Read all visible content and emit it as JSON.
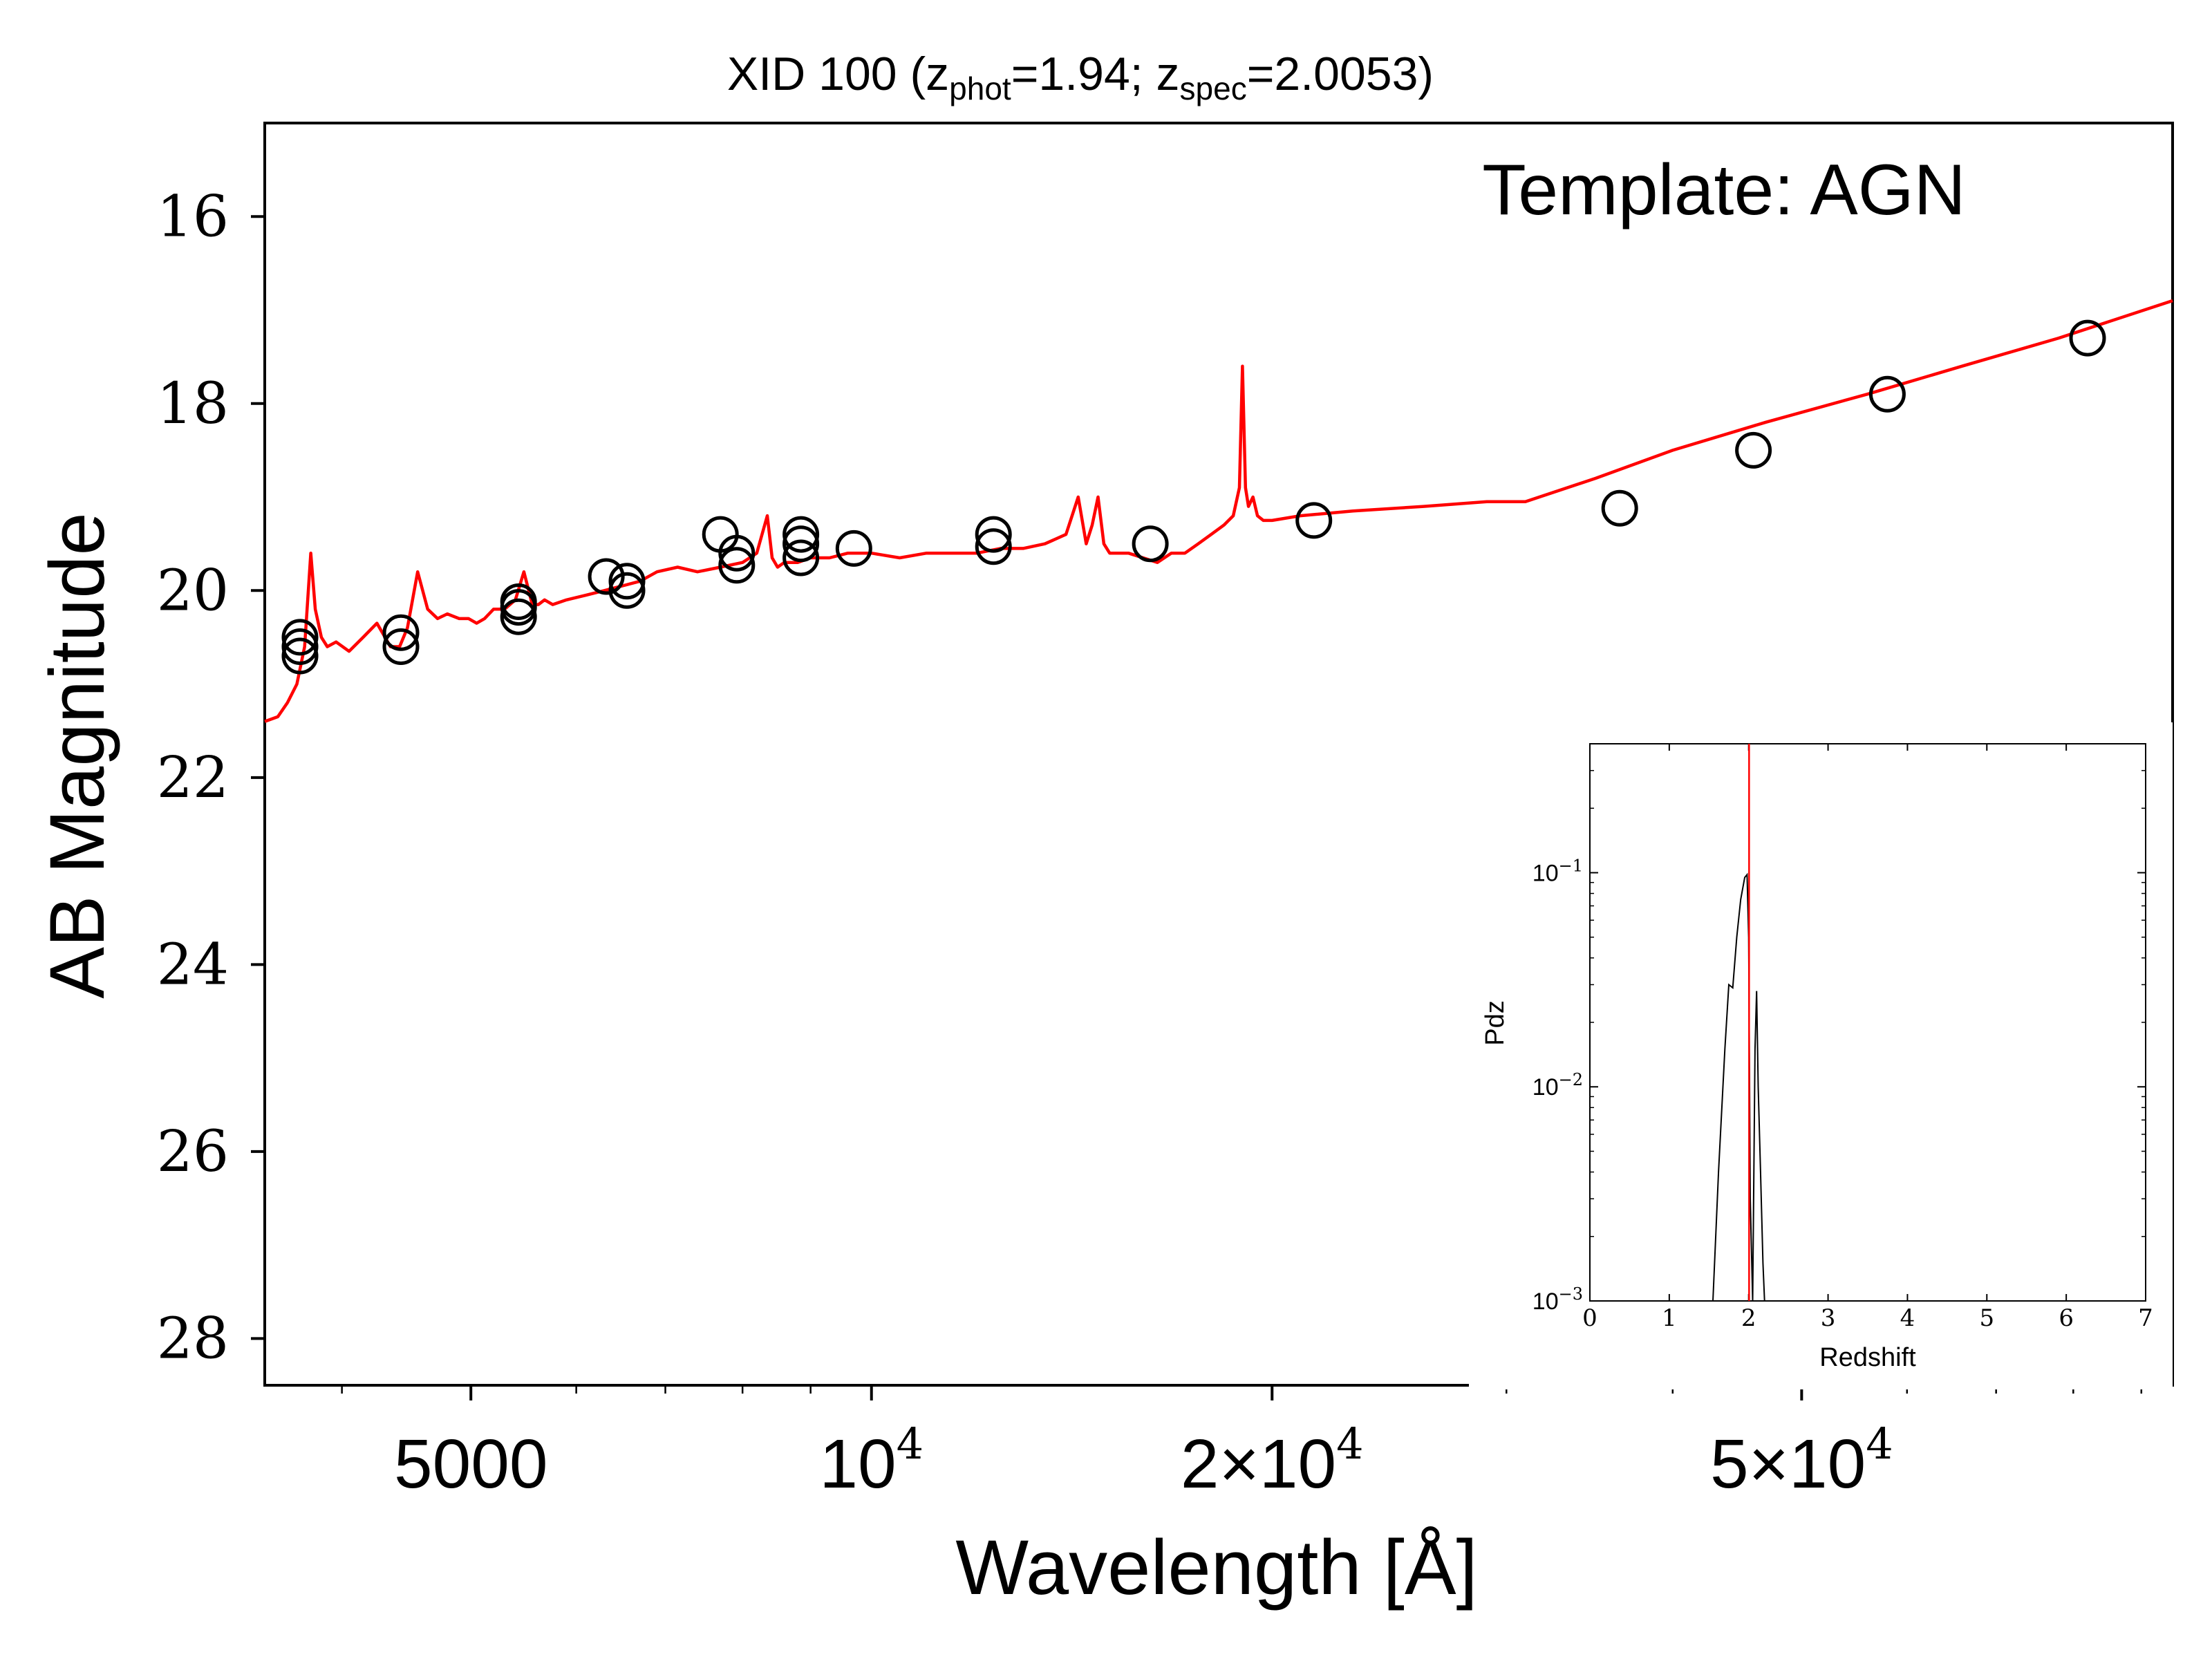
{
  "chart_data": [
    {
      "type": "scatter",
      "title": "XID 100 (z_phot=1.94; z_spec=2.0053)",
      "title_parts": {
        "prefix": "XID 100 (z",
        "sub1": "phot",
        "mid": "=1.94; z",
        "sub2": "spec",
        "suffix": "=2.0053)"
      },
      "annotation": "Template: AGN",
      "xlabel": "Wavelength [Å]",
      "ylabel": "AB Magnitude",
      "xscale": "log",
      "yaxis_inverted": true,
      "xlim": [
        3500,
        95000
      ],
      "ylim": [
        28.5,
        15.0
      ],
      "yticks": [
        16,
        18,
        20,
        22,
        24,
        26,
        28
      ],
      "xticks": [
        {
          "value": 5000,
          "label": "5000"
        },
        {
          "value": 10000,
          "label": "10",
          "sup": "4"
        },
        {
          "value": 20000,
          "label": "2×10",
          "sup": "4"
        },
        {
          "value": 50000,
          "label": "5×10",
          "sup": "4"
        }
      ],
      "colors": {
        "model": "#ff0000",
        "points": "#000000"
      },
      "series": [
        {
          "type": "line",
          "x": [
            3500,
            3580,
            3640,
            3700,
            3750,
            3790,
            3820,
            3860,
            3900,
            3960,
            4050,
            4150,
            4250,
            4350,
            4420,
            4480,
            4560,
            4640,
            4720,
            4800,
            4900,
            4980,
            5050,
            5120,
            5200,
            5300,
            5400,
            5480,
            5560,
            5620,
            5680,
            5760,
            5900,
            6100,
            6300,
            6500,
            6700,
            6900,
            7150,
            7400,
            7700,
            8000,
            8200,
            8350,
            8420,
            8500,
            8600,
            8800,
            9000,
            9300,
            9600,
            10000,
            10500,
            11000,
            11500,
            12000,
            12500,
            13000,
            13500,
            14000,
            14300,
            14500,
            14650,
            14800,
            14950,
            15100,
            15300,
            15600,
            16000,
            16400,
            16800,
            17200,
            17600,
            18000,
            18400,
            18700,
            18900,
            19000,
            19100,
            19200,
            19350,
            19500,
            19700,
            20000,
            21000,
            23000,
            26000,
            29000,
            31000,
            35000,
            40000,
            47000,
            56000,
            66000,
            78000,
            95000
          ],
          "y": [
            21.4,
            21.35,
            21.2,
            21.0,
            20.6,
            19.6,
            20.2,
            20.5,
            20.6,
            20.55,
            20.65,
            20.5,
            20.35,
            20.6,
            20.6,
            20.4,
            19.8,
            20.2,
            20.3,
            20.25,
            20.3,
            20.3,
            20.35,
            20.3,
            20.2,
            20.2,
            20.1,
            19.8,
            20.15,
            20.15,
            20.1,
            20.15,
            20.1,
            20.05,
            20.0,
            19.95,
            19.9,
            19.8,
            19.75,
            19.8,
            19.75,
            19.7,
            19.6,
            19.2,
            19.65,
            19.75,
            19.7,
            19.7,
            19.65,
            19.65,
            19.6,
            19.6,
            19.65,
            19.6,
            19.6,
            19.6,
            19.55,
            19.55,
            19.5,
            19.4,
            19.0,
            19.5,
            19.3,
            19.0,
            19.5,
            19.6,
            19.6,
            19.6,
            19.65,
            19.7,
            19.6,
            19.6,
            19.5,
            19.4,
            19.3,
            19.2,
            18.9,
            17.6,
            18.9,
            19.1,
            19.0,
            19.2,
            19.25,
            19.25,
            19.2,
            19.15,
            19.1,
            19.05,
            19.05,
            18.8,
            18.5,
            18.2,
            17.9,
            17.6,
            17.3,
            16.9
          ]
        },
        {
          "type": "scatter",
          "x": [
            3720,
            3720,
            3720,
            4430,
            4430,
            5430,
            5430,
            5430,
            6320,
            6550,
            6550,
            7700,
            7920,
            7920,
            8850,
            8850,
            8850,
            9700,
            12350,
            12350,
            16200,
            21500,
            36500,
            46000,
            58000,
            82000
          ],
          "y": [
            20.7,
            20.6,
            20.5,
            20.6,
            20.45,
            20.28,
            20.18,
            20.12,
            19.85,
            19.9,
            20.0,
            19.4,
            19.6,
            19.73,
            19.4,
            19.5,
            19.65,
            19.55,
            19.4,
            19.53,
            19.5,
            19.25,
            19.12,
            18.5,
            17.9,
            17.3
          ]
        }
      ]
    },
    {
      "type": "line",
      "inset": true,
      "xlabel": "Redshift",
      "ylabel": "Pdz",
      "xlim": [
        0,
        7
      ],
      "ylim": [
        0.001,
        0.4
      ],
      "yscale": "log",
      "xticks": [
        0,
        1,
        2,
        3,
        4,
        5,
        6,
        7
      ],
      "yticks": [
        {
          "value": 0.1,
          "label": "10",
          "sup": "−1"
        },
        {
          "value": 0.01,
          "label": "10",
          "sup": "−2"
        },
        {
          "value": 0.001,
          "label": "10",
          "sup": "−3"
        }
      ],
      "vline": {
        "x": 2.0053,
        "color": "#ff0000"
      },
      "series": [
        {
          "type": "line",
          "x": [
            1.55,
            1.62,
            1.7,
            1.75,
            1.8,
            1.85,
            1.9,
            1.95,
            1.98,
            2.0,
            2.02,
            2.05,
            2.08,
            2.1,
            2.12,
            2.15,
            2.18,
            2.2
          ],
          "y": [
            0.0009,
            0.004,
            0.015,
            0.03,
            0.029,
            0.05,
            0.075,
            0.095,
            0.098,
            0.05,
            0.003,
            0.001,
            0.015,
            0.028,
            0.01,
            0.004,
            0.0015,
            0.0009
          ]
        }
      ]
    }
  ]
}
